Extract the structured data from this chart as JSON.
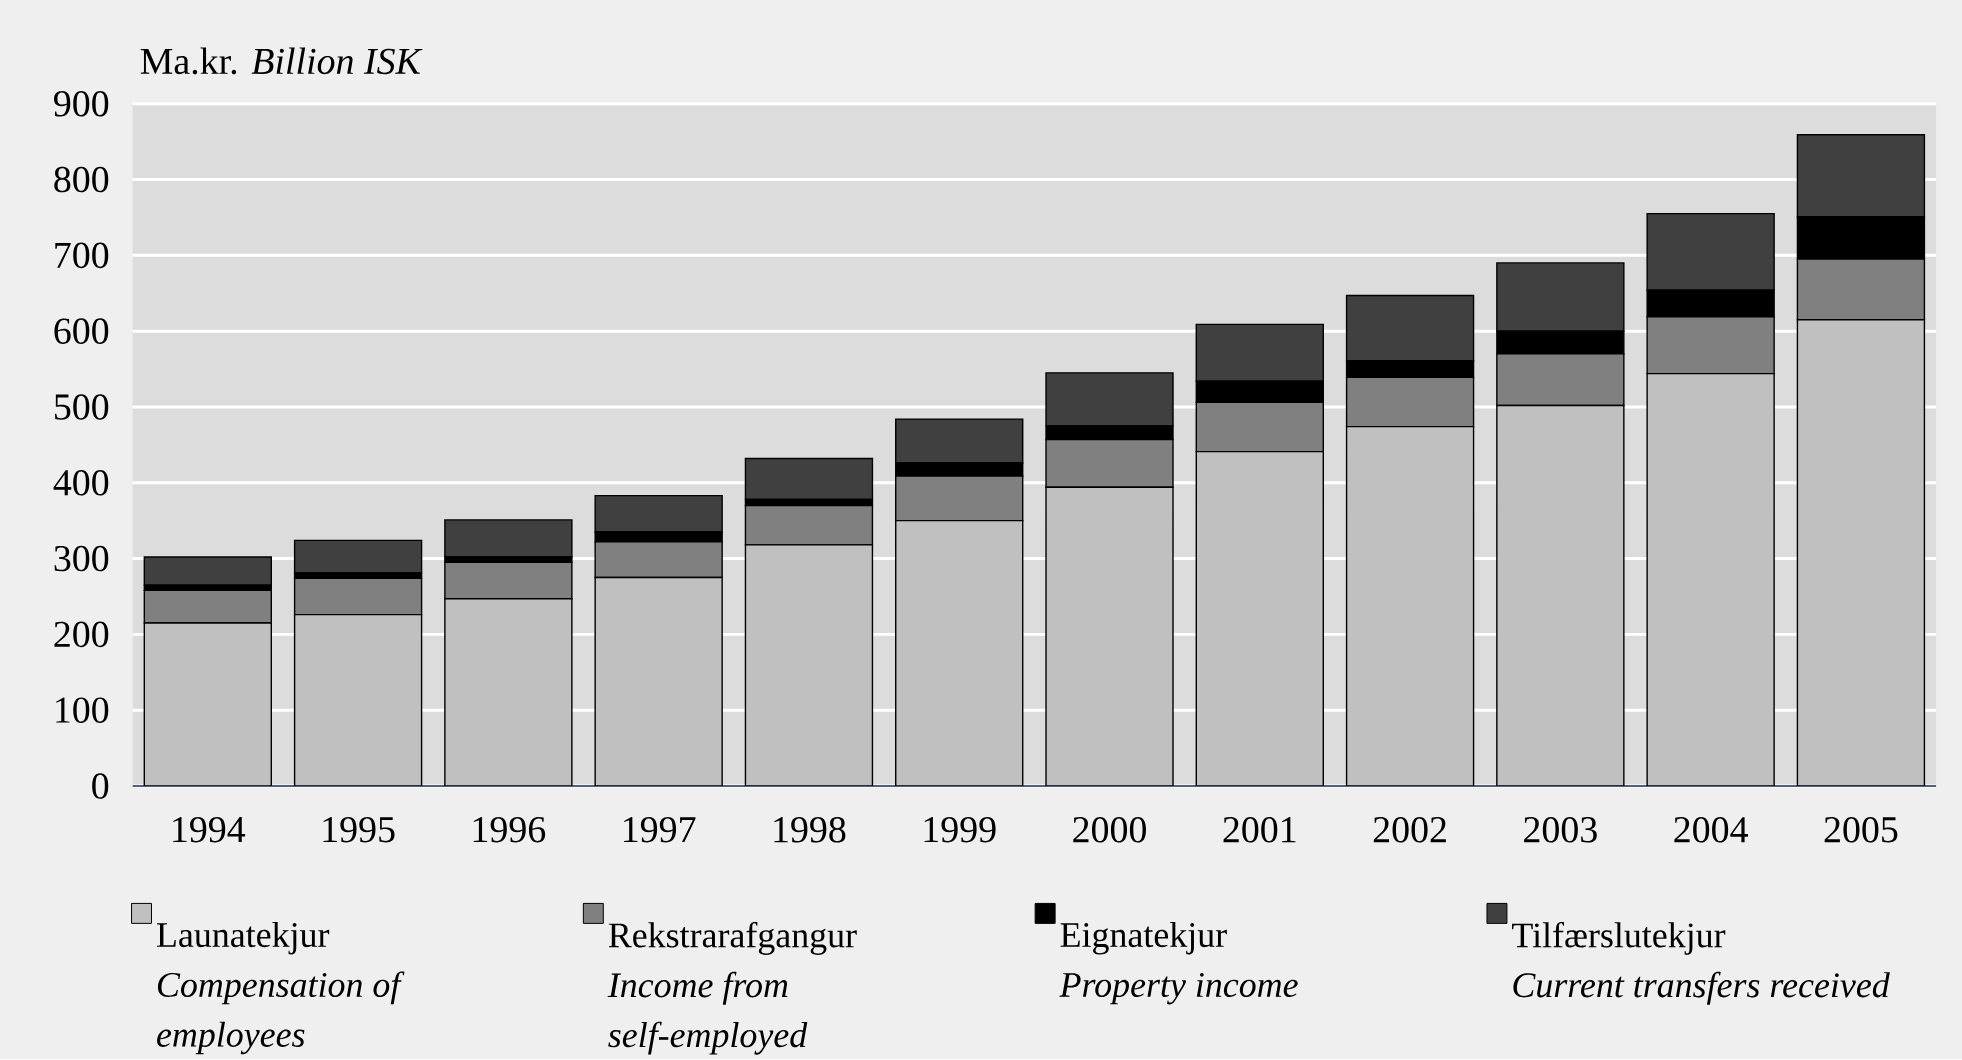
{
  "chart_data": {
    "type": "bar",
    "stacked": true,
    "ylabel": "Ma.kr.  *Billion ISK*",
    "categories": [
      "1994",
      "1995",
      "1996",
      "1997",
      "1998",
      "1999",
      "2000",
      "2001",
      "2002",
      "2003",
      "2004",
      "2005"
    ],
    "series": [
      {
        "name": "Launatekjur",
        "color": "#c0c0c0",
        "values": [
          215,
          226,
          247,
          275,
          318,
          350,
          394,
          441,
          474,
          502,
          544,
          615
        ]
      },
      {
        "name": "Rekstrarafgangur",
        "color": "#808080",
        "values": [
          43,
          48,
          48,
          47,
          52,
          59,
          63,
          65,
          65,
          68,
          75,
          80
        ]
      },
      {
        "name": "Eignatekjur",
        "color": "#000000",
        "values": [
          7,
          7,
          7,
          13,
          8,
          17,
          18,
          28,
          22,
          30,
          35,
          56
        ]
      },
      {
        "name": "Tilfærslutekjur",
        "color": "#404040",
        "values": [
          37,
          43,
          49,
          48,
          54,
          58,
          70,
          75,
          86,
          90,
          101,
          108
        ]
      }
    ],
    "ylim": [
      0,
      900
    ],
    "yticks": [
      0,
      100,
      200,
      300,
      400,
      500,
      600,
      700,
      800,
      900
    ],
    "grid": "y",
    "legend": "bottom",
    "annotations": [
      "Compensation of employees",
      "Income from self-employed",
      "Property income",
      "Current transfers received"
    ]
  }
}
